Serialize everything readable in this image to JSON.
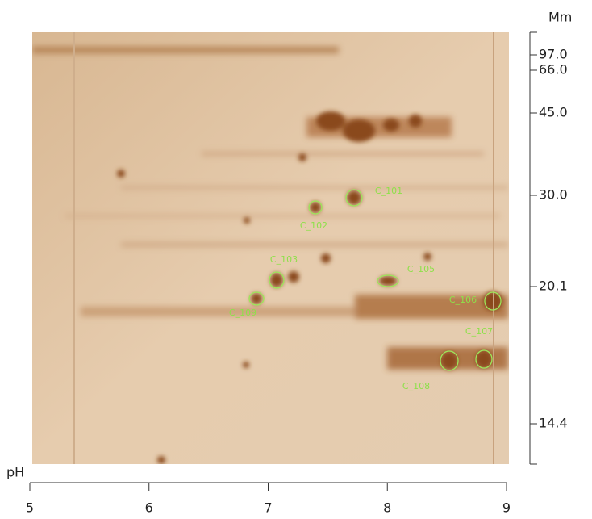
{
  "x_axis": {
    "label": "pH",
    "xlim": [
      5,
      9
    ],
    "ticks": [
      5,
      6,
      7,
      8,
      9
    ]
  },
  "y_axis": {
    "label": "Mm",
    "ticks": [
      {
        "value": 97,
        "label": "97.0"
      },
      {
        "value": 66,
        "label": "66.0"
      },
      {
        "value": 45,
        "label": "45.0"
      },
      {
        "value": 30,
        "label": "30.0"
      },
      {
        "value": 20.1,
        "label": "20.1"
      },
      {
        "value": 14.4,
        "label": "14.4"
      }
    ]
  },
  "spots": [
    "C_101",
    "C_102",
    "C_103",
    "C_105",
    "C_106",
    "C_107",
    "C_108",
    "C_109"
  ]
}
